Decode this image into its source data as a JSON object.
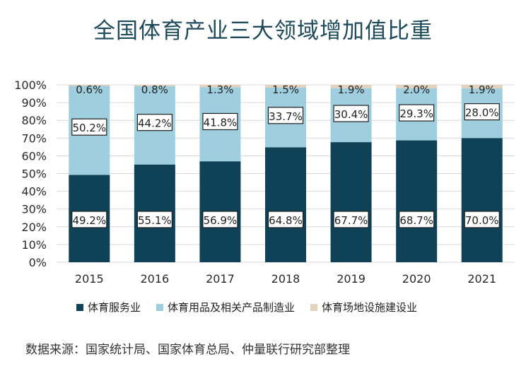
{
  "title": "全国体育产业三大领域增加值比重",
  "source": "数据来源：国家统计局、国家体育总局、仲量联行研究部整理",
  "colors": {
    "series": [
      "#0f4257",
      "#9fcfdf",
      "#e3d3bd"
    ],
    "grid": "#d9d9d9"
  },
  "chart_data": {
    "type": "bar",
    "stacked": true,
    "percent": true,
    "categories": [
      "2015",
      "2016",
      "2017",
      "2018",
      "2019",
      "2020",
      "2021"
    ],
    "series": [
      {
        "name": "体育服务业",
        "values": [
          49.2,
          55.1,
          56.9,
          64.8,
          67.7,
          68.7,
          70.0
        ]
      },
      {
        "name": "体育用品及相关产品制造业",
        "values": [
          50.2,
          44.2,
          41.8,
          33.7,
          30.4,
          29.3,
          28.0
        ]
      },
      {
        "name": "体育场地设施建设业",
        "values": [
          0.6,
          0.8,
          1.3,
          1.5,
          1.9,
          2.0,
          1.9
        ]
      }
    ],
    "ylim": [
      0,
      100
    ],
    "yticks": [
      "0%",
      "10%",
      "20%",
      "30%",
      "40%",
      "50%",
      "60%",
      "70%",
      "80%",
      "90%",
      "100%"
    ],
    "data_labels": true,
    "grid": true,
    "legend_position": "bottom"
  }
}
